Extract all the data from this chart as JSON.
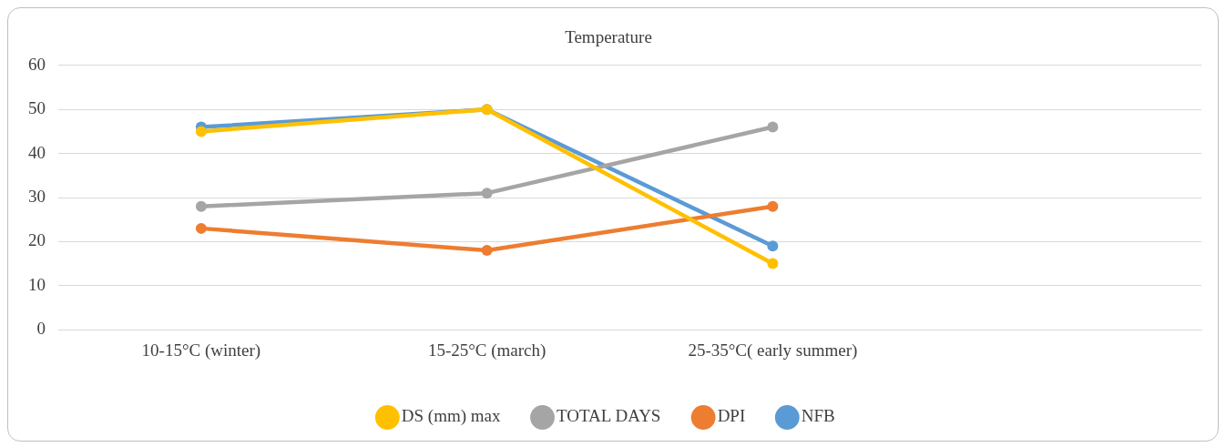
{
  "chart_data": {
    "type": "line",
    "title": "Temperature",
    "categories": [
      "10-15°C (winter)",
      "15-25°C (march)",
      "25-35°C( early summer)",
      null
    ],
    "series": [
      {
        "name": "NFB",
        "color": "#5b9bd5",
        "values": [
          46,
          50,
          19,
          null
        ]
      },
      {
        "name": "DPI",
        "color": "#ed7d31",
        "values": [
          23,
          18,
          28,
          null
        ]
      },
      {
        "name": "TOTAL DAYS",
        "color": "#a5a5a5",
        "values": [
          28,
          31,
          46,
          null
        ]
      },
      {
        "name": "DS (mm) max",
        "color": "#ffc000",
        "values": [
          45,
          50,
          15,
          null
        ]
      }
    ],
    "ylim": [
      0,
      60
    ],
    "yticks": [
      0,
      10,
      20,
      30,
      40,
      50,
      60
    ],
    "grid": "y",
    "legend": "bottom",
    "marker": "circle",
    "line_style": "solid"
  }
}
